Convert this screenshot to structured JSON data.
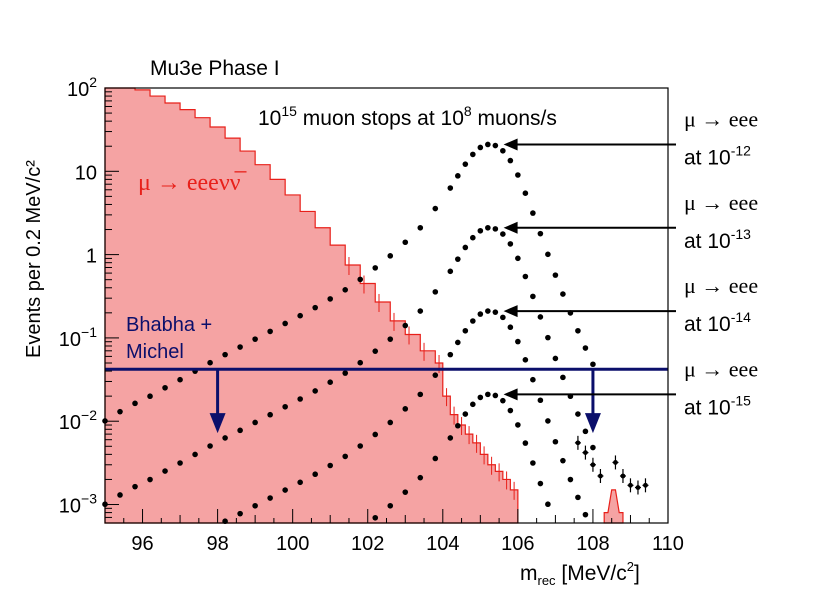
{
  "chart_data": {
    "type": "scatter",
    "title": "Mu3e Phase I",
    "subtitle_parts": {
      "base1": "10",
      "exp1": "15",
      "mid": " muon stops at 10",
      "exp2": "8",
      "tail": " muons/s"
    },
    "xlabel": {
      "main": "m",
      "sub": "rec",
      "unit": " [MeV/c",
      "sup": "2",
      "close": "]"
    },
    "ylabel": "Events per 0.2 MeV/c²",
    "xlim": [
      95,
      110
    ],
    "ylim": [
      0.0006,
      100
    ],
    "yscale": "log",
    "x_ticks": [
      "96",
      "98",
      "100",
      "102",
      "104",
      "106",
      "108",
      "110"
    ],
    "y_ticks": [
      {
        "value": 100,
        "base": "10",
        "exp": "2"
      },
      {
        "value": 10,
        "base": "10",
        "exp": ""
      },
      {
        "value": 1,
        "base": "1",
        "exp": ""
      },
      {
        "value": 0.1,
        "base": "10",
        "exp": "−1"
      },
      {
        "value": 0.01,
        "base": "10",
        "exp": "−2"
      },
      {
        "value": 0.001,
        "base": "10",
        "exp": "−3"
      }
    ],
    "colors": {
      "background_fill": "#f5a3a3",
      "background_line": "#e8201a",
      "bhabha_line": "#0b0f6b",
      "signal": "#000000",
      "arrows": "#000000"
    },
    "background_label": "μ → eeeνν̅",
    "background_series": {
      "name": "μ → eeeνν̅",
      "x": [
        95.0,
        95.4,
        95.8,
        96.2,
        96.6,
        97.0,
        97.4,
        97.8,
        98.2,
        98.6,
        99.0,
        99.4,
        99.8,
        100.2,
        100.6,
        101.0,
        101.4,
        101.8,
        102.2,
        102.6,
        103.0,
        103.4,
        103.8,
        104.0,
        104.2,
        104.4,
        104.6,
        104.8,
        105.0,
        105.2,
        105.4,
        105.6,
        105.8
      ],
      "y": [
        100,
        100,
        95,
        80,
        66,
        55,
        44,
        34,
        25,
        17.5,
        12,
        8,
        5.2,
        3.3,
        2.1,
        1.3,
        0.75,
        0.45,
        0.27,
        0.16,
        0.11,
        0.07,
        0.05,
        0.02,
        0.012,
        0.009,
        0.007,
        0.0055,
        0.004,
        0.003,
        0.0025,
        0.002,
        0.0015
      ]
    },
    "background_tail": {
      "x": [
        108.3,
        108.5,
        108.7
      ],
      "y": [
        0.0008,
        0.0015,
        0.0008
      ]
    },
    "bhabha_label": [
      "Bhabha +",
      "Michel"
    ],
    "bhabha_level": 0.042,
    "bhabha_arrows_x": [
      98.0,
      108.0
    ],
    "bhabha_arrow_tip": 0.0085,
    "signal_series": [
      {
        "name": "μ → eee at 10⁻¹²",
        "br_exp": "-12",
        "peak": 21
      },
      {
        "name": "μ → eee at 10⁻¹³",
        "br_exp": "-13",
        "peak": 2.1
      },
      {
        "name": "μ → eee at 10⁻¹⁴",
        "br_exp": "-14",
        "peak": 0.21
      },
      {
        "name": "μ → eee at 10⁻¹⁵",
        "br_exp": "-15",
        "peak": 0.021
      }
    ],
    "signal_shape": {
      "x": [
        95.0,
        95.4,
        95.8,
        96.2,
        96.6,
        97.0,
        97.4,
        97.8,
        98.2,
        98.6,
        99.0,
        99.4,
        99.8,
        100.2,
        100.6,
        101.0,
        101.4,
        101.8,
        102.2,
        102.6,
        103.0,
        103.4,
        103.8,
        104.2,
        104.4,
        104.6,
        104.8,
        105.0,
        105.2,
        105.4,
        105.6,
        105.8,
        106.0,
        106.2,
        106.4,
        106.6,
        106.8,
        107.0,
        107.2,
        107.4,
        107.6,
        107.8,
        108.0
      ],
      "rel": [
        0.00048,
        0.00062,
        0.00078,
        0.00095,
        0.0012,
        0.0015,
        0.0019,
        0.0024,
        0.003,
        0.0037,
        0.0046,
        0.0057,
        0.0071,
        0.0088,
        0.011,
        0.014,
        0.018,
        0.024,
        0.033,
        0.046,
        0.067,
        0.1,
        0.17,
        0.3,
        0.42,
        0.58,
        0.76,
        0.92,
        1.0,
        0.97,
        0.84,
        0.64,
        0.43,
        0.26,
        0.15,
        0.085,
        0.048,
        0.027,
        0.016,
        0.0095,
        0.0058,
        0.0036,
        0.0023
      ]
    },
    "signal_labels": [
      {
        "text": "μ → eee",
        "at_base": "at 10",
        "at_exp": "-12"
      },
      {
        "text": "μ → eee",
        "at_base": "at 10",
        "at_exp": "-13"
      },
      {
        "text": "μ → eee",
        "at_base": "at 10",
        "at_exp": "-14"
      },
      {
        "text": "μ → eee",
        "at_base": "at 10",
        "at_exp": "-15"
      }
    ],
    "error_points": {
      "x": [
        107.6,
        107.8,
        108.0,
        108.2,
        108.6,
        108.8,
        109.0,
        109.2,
        109.4
      ],
      "y": [
        0.0055,
        0.0042,
        0.003,
        0.0022,
        0.0032,
        0.0022,
        0.0017,
        0.0016,
        0.0017
      ]
    },
    "grid": false,
    "legend": "right"
  }
}
